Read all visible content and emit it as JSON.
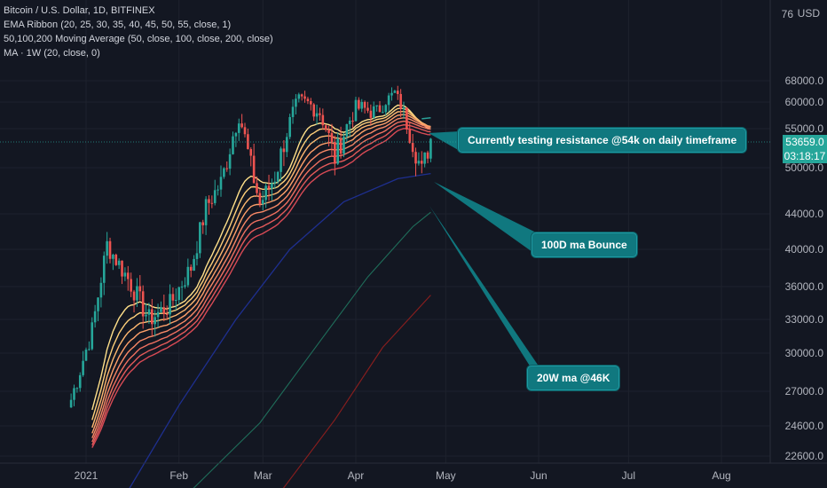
{
  "legend": {
    "title": "Bitcoin / U.S. Dollar, 1D, BITFINEX",
    "ema_ribbon": "EMA Ribbon (20, 25, 30, 35, 40, 45, 50, 55, close, 1)",
    "ma_set": "50,100,200 Moving Average (50, close, 100, close, 200, close)",
    "ma_weekly": "MA · 1W (20, close, 0)"
  },
  "price_axis": {
    "currency": "USD",
    "top_partial": "76",
    "current_price": "53659.0",
    "countdown": "03:18:17"
  },
  "annotations": {
    "resistance": "Currently testing resistance @54k on daily timeframe",
    "bounce": "100D ma Bounce",
    "weekly_ma": "20W ma @46K"
  },
  "colors": {
    "background": "#131722",
    "up": "#26a69a",
    "down": "#ef5350",
    "callout": "#10787f",
    "ma50": "#1e2f8f",
    "ma100": "#1f6d5a",
    "ma200": "#8b1e1e",
    "ma_weekly": "#2aa198"
  },
  "chart_data": {
    "type": "candlestick",
    "x_axis_labels": [
      "2021",
      "Feb",
      "Mar",
      "Apr",
      "May",
      "Jun",
      "Jul",
      "Aug"
    ],
    "y_axis_ticks": [
      22600,
      24600,
      27000,
      30000,
      33000,
      36000,
      40000,
      44000,
      50000,
      55000,
      60000,
      68000
    ],
    "y_axis_tick_labels": [
      "22600.0",
      "24600.0",
      "27000.0",
      "30000.0",
      "33000.0",
      "36000.0",
      "40000.0",
      "44000.0",
      "50000.0",
      "55000.0",
      "60000.0",
      "68000.0"
    ],
    "scale": "log",
    "ylim": [
      22000,
      76000
    ],
    "last_price": 53659,
    "closes_approx": [
      {
        "date": "2020-12-27",
        "close": 26400
      },
      {
        "date": "2021-01-03",
        "close": 32000
      },
      {
        "date": "2021-01-08",
        "close": 40500
      },
      {
        "date": "2021-01-15",
        "close": 36800
      },
      {
        "date": "2021-01-22",
        "close": 33000
      },
      {
        "date": "2021-01-29",
        "close": 34300
      },
      {
        "date": "2021-02-05",
        "close": 38000
      },
      {
        "date": "2021-02-10",
        "close": 44800
      },
      {
        "date": "2021-02-15",
        "close": 48000
      },
      {
        "date": "2021-02-21",
        "close": 57500
      },
      {
        "date": "2021-02-28",
        "close": 45200
      },
      {
        "date": "2021-03-05",
        "close": 48800
      },
      {
        "date": "2021-03-13",
        "close": 61200
      },
      {
        "date": "2021-03-20",
        "close": 58000
      },
      {
        "date": "2021-03-25",
        "close": 51200
      },
      {
        "date": "2021-04-01",
        "close": 59000
      },
      {
        "date": "2021-04-08",
        "close": 58000
      },
      {
        "date": "2021-04-14",
        "close": 63500
      },
      {
        "date": "2021-04-18",
        "close": 56000
      },
      {
        "date": "2021-04-23",
        "close": 49500
      },
      {
        "date": "2021-04-26",
        "close": 53659
      }
    ]
  }
}
